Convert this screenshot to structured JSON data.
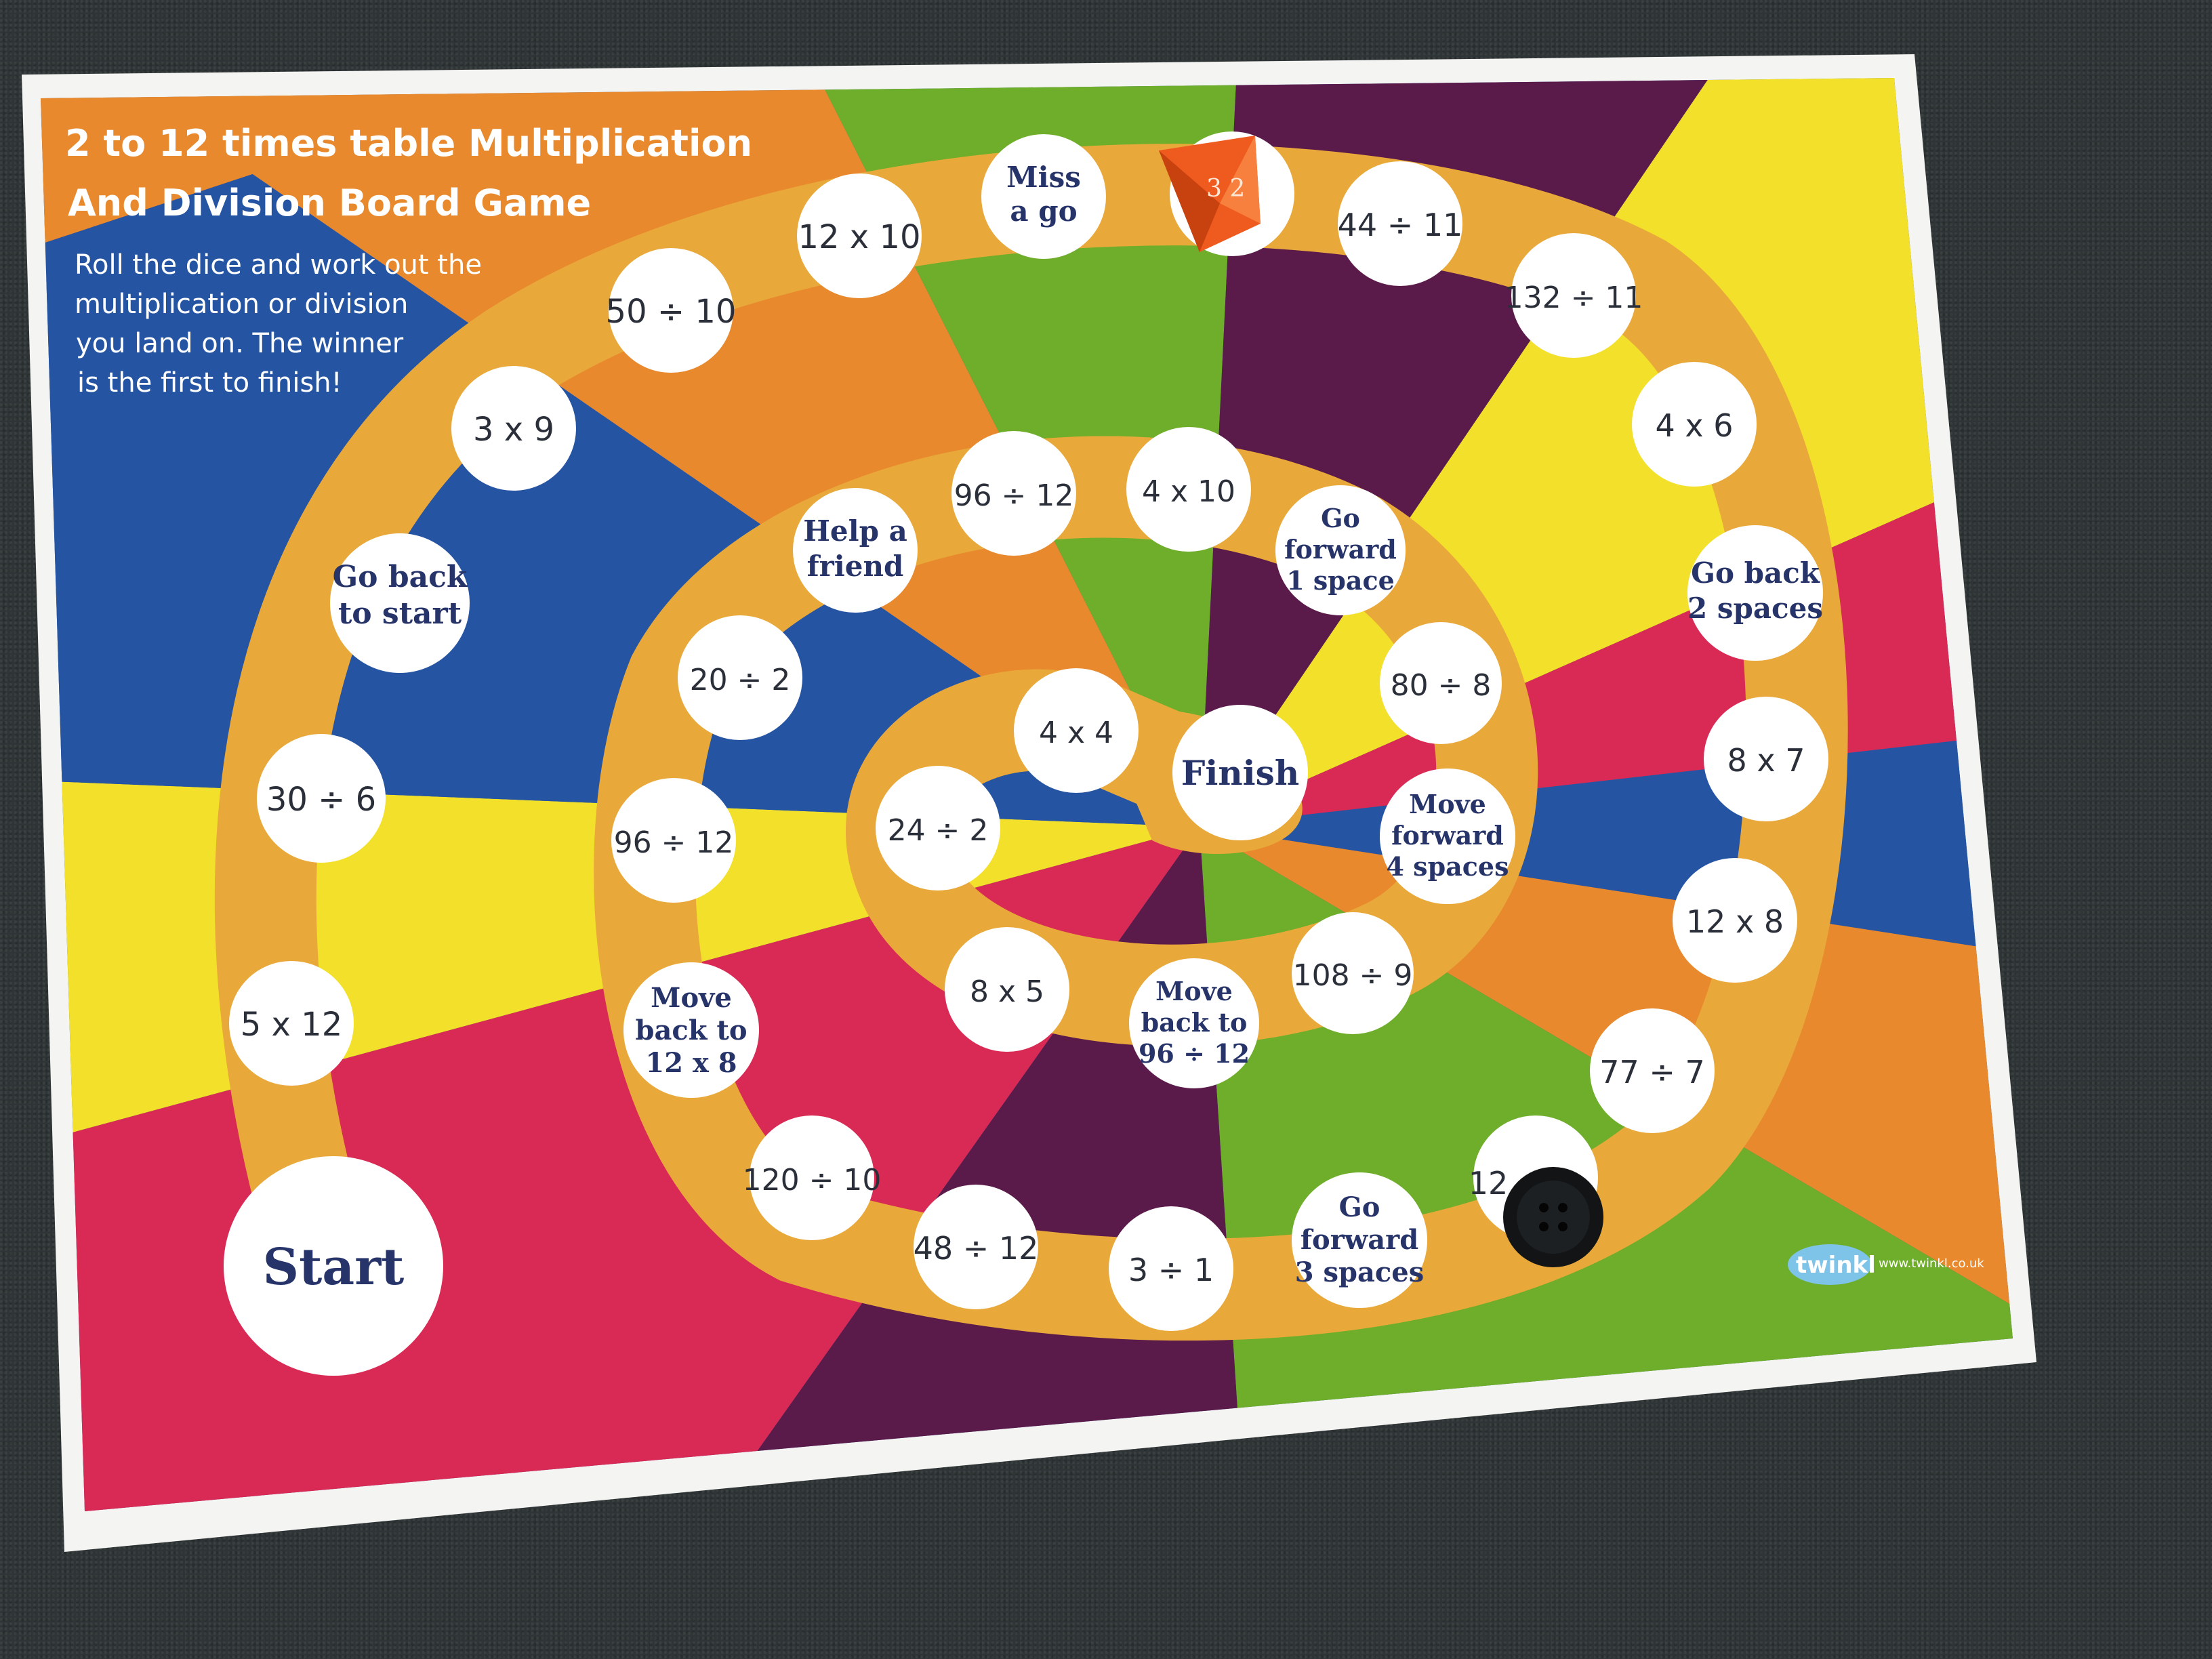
{
  "title": {
    "line1": "2 to 12 times table Multiplication",
    "line2": "And Division Board Game"
  },
  "instructions": {
    "line1": "Roll the dice and work out the",
    "line2": "multiplication or division",
    "line3": "you land on. The winner",
    "line4": "is the first to finish!"
  },
  "squares": {
    "start": "Start",
    "s1": "5 x 12",
    "s2": "30 ÷ 6",
    "s3_a": "Go back",
    "s3_b": "to start",
    "s4": "3 x 9",
    "s5": "50 ÷ 10",
    "s6": "12 x 10",
    "s7_a": "Miss",
    "s7_b": "a go",
    "s9": "44 ÷ 11",
    "s10": "132 ÷ 11",
    "s11": "4 x 6",
    "s12_a": "Go back",
    "s12_b": "2 spaces",
    "s13": "8 x 7",
    "s14": "12 x 8",
    "s15": "77 ÷ 7",
    "s16": "12",
    "s17_a": "Go",
    "s17_b": "forward",
    "s17_c": "3 spaces",
    "s18": "3 ÷ 1",
    "s19": "48 ÷ 12",
    "s20": "120 ÷ 10",
    "s21_a": "Move",
    "s21_b": "back to",
    "s21_c": "12 x 8",
    "s22": "96 ÷ 12",
    "s23": "20 ÷ 2",
    "s24_a": "Help a",
    "s24_b": "friend",
    "s25": "96 ÷ 12",
    "s26": "4 x 10",
    "s27_a": "Go",
    "s27_b": "forward",
    "s27_c": "1 space",
    "s28": "80 ÷ 8",
    "s29_a": "Move",
    "s29_b": "forward",
    "s29_c": "4 spaces",
    "s30": "108 ÷ 9",
    "s31_a": "Move",
    "s31_b": "back to",
    "s31_c": "96 ÷ 12",
    "s32": "8 x 5",
    "s33": "24 ÷ 2",
    "s34": "4 x 4",
    "finish": "Finish"
  },
  "brand": {
    "logo": "twinkl",
    "url": "www.twinkl.co.uk"
  },
  "colors": {
    "background": "#2f3536",
    "track": "#e9a93a",
    "orange": "#e8892e",
    "green": "#6fae2a",
    "purple": "#5a1a4a",
    "yellow": "#f3e02a",
    "red": "#d92a55",
    "blue": "#2554a3",
    "token_text": "#27346a",
    "dice": "#ef5a1e"
  }
}
